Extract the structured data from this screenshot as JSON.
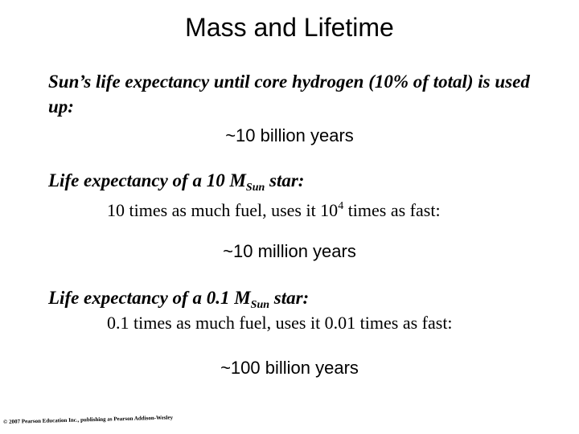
{
  "title": "Mass and Lifetime",
  "sun": {
    "text": "Sun’s life expectancy until core hydrogen (10% of total) is used up:",
    "result": "~10 billion years"
  },
  "star10": {
    "heading_before": "Life expectancy of a 10 M",
    "heading_sub": "Sun",
    "heading_after": " star:",
    "detail_before": "10 times as much fuel, uses it 10",
    "detail_sup": "4",
    "detail_after": " times as fast:",
    "result": "~10 million years"
  },
  "star01": {
    "heading_before": "Life expectancy of a 0.1 M",
    "heading_sub": "Sun",
    "heading_after": " star:",
    "detail": "0.1 times as much fuel, uses it 0.01 times as fast:",
    "result": "~100 billion years"
  },
  "credit": "© 2007 Pearson Education Inc., publishing as Pearson Addison-Wesley"
}
